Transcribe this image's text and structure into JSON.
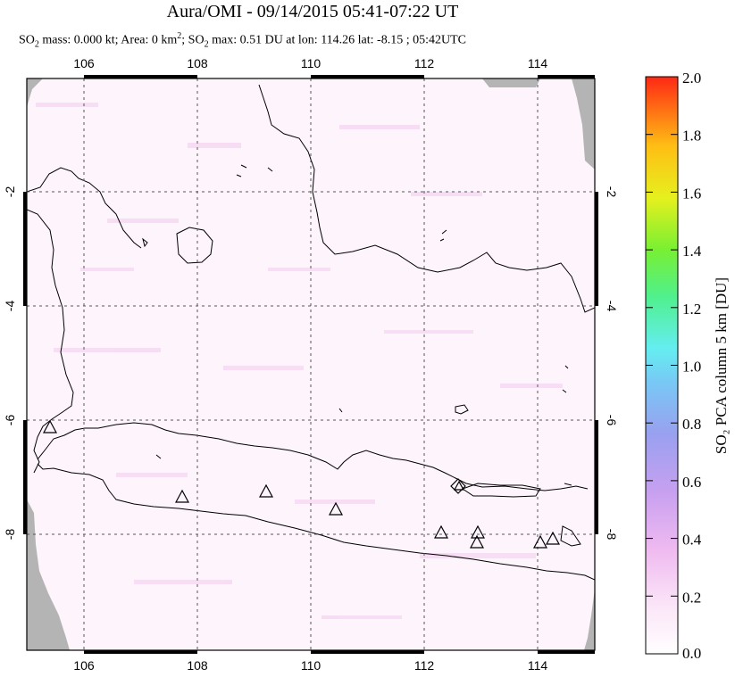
{
  "header": {
    "title": "Aura/OMI - 09/14/2015 05:41-07:22 UT",
    "subtitle_parts": {
      "so2_prefix": "SO",
      "so2_sub": "2",
      "mass_text": " mass: 0.000 kt; Area: 0 km",
      "area_sup": "2",
      "max_prefix": "; SO",
      "max_sub": "2",
      "max_text": " max: 0.51 DU at lon: 114.26 lat: -8.15 ; 05:42UTC"
    }
  },
  "map": {
    "lon_ticks": [
      "106",
      "108",
      "110",
      "112",
      "114"
    ],
    "lat_ticks": [
      "-2",
      "-4",
      "-6",
      "-8"
    ],
    "lat_ticks_right": [
      "-2",
      "-4",
      "-6",
      "-8"
    ],
    "volcano_count": 11
  },
  "colorbar": {
    "labels": [
      "2.0",
      "1.8",
      "1.6",
      "1.4",
      "1.2",
      "1.0",
      "0.8",
      "0.6",
      "0.4",
      "0.2",
      "0.0"
    ],
    "axis_label": "SO₂ PCA column 5 km [DU]",
    "colors": [
      "#ffffff",
      "#f5c8f0",
      "#c89cf0",
      "#9696f0",
      "#7ac8f5",
      "#64f0f0",
      "#50f08c",
      "#78f032",
      "#e6f01e",
      "#ffbe14",
      "#ff7814",
      "#ff2814"
    ]
  }
}
